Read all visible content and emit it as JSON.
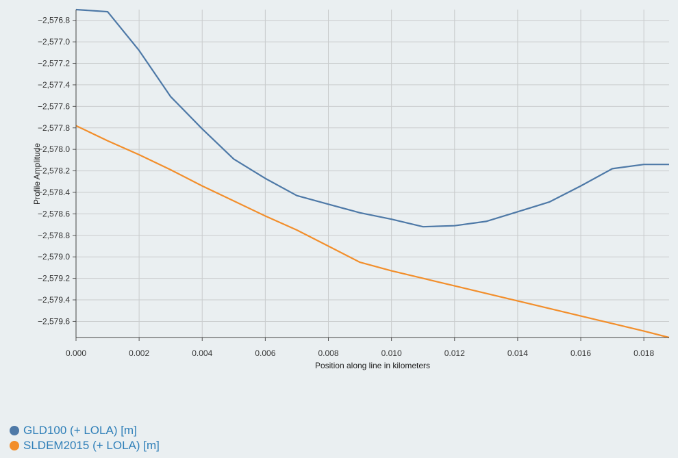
{
  "chart_data": {
    "type": "line",
    "xlabel": "Position along line in kilometers",
    "ylabel": "Profile Amplitude",
    "xlim": [
      0,
      0.0188
    ],
    "ylim": [
      -2579.75,
      -2576.7
    ],
    "xticks": [
      0.0,
      0.002,
      0.004,
      0.006,
      0.008,
      0.01,
      0.012,
      0.014,
      0.016,
      0.018
    ],
    "xtick_labels": [
      "0.000",
      "0.002",
      "0.004",
      "0.006",
      "0.008",
      "0.010",
      "0.012",
      "0.014",
      "0.016",
      "0.018"
    ],
    "yticks": [
      -2576.8,
      -2577.0,
      -2577.2,
      -2577.4,
      -2577.6,
      -2577.8,
      -2578.0,
      -2578.2,
      -2578.4,
      -2578.6,
      -2578.8,
      -2579.0,
      -2579.2,
      -2579.4,
      -2579.6
    ],
    "ytick_labels": [
      "−2,576.8",
      "−2,577.0",
      "−2,577.2",
      "−2,577.4",
      "−2,577.6",
      "−2,577.8",
      "−2,578.0",
      "−2,578.2",
      "−2,578.4",
      "−2,578.6",
      "−2,578.8",
      "−2,579.0",
      "−2,579.2",
      "−2,579.4",
      "−2,579.6"
    ],
    "grid": true,
    "legend_position": "bottom-left",
    "series": [
      {
        "name": "GLD100 (+ LOLA) [m]",
        "color": "#4e79a7",
        "x": [
          0.0,
          0.001,
          0.002,
          0.003,
          0.004,
          0.005,
          0.006,
          0.007,
          0.008,
          0.009,
          0.01,
          0.011,
          0.012,
          0.013,
          0.014,
          0.015,
          0.016,
          0.017,
          0.018,
          0.0188
        ],
        "y": [
          -2576.7,
          -2576.72,
          -2577.08,
          -2577.51,
          -2577.81,
          -2578.09,
          -2578.27,
          -2578.43,
          -2578.51,
          -2578.59,
          -2578.65,
          -2578.72,
          -2578.71,
          -2578.67,
          -2578.58,
          -2578.49,
          -2578.34,
          -2578.18,
          -2578.14,
          -2578.14
        ]
      },
      {
        "name": "SLDEM2015 (+ LOLA) [m]",
        "color": "#f28e2b",
        "x": [
          0.0,
          0.001,
          0.002,
          0.003,
          0.004,
          0.005,
          0.006,
          0.007,
          0.008,
          0.009,
          0.01,
          0.011,
          0.012,
          0.013,
          0.014,
          0.015,
          0.016,
          0.017,
          0.018,
          0.0188
        ],
        "y": [
          -2577.78,
          -2577.92,
          -2578.05,
          -2578.19,
          -2578.34,
          -2578.48,
          -2578.62,
          -2578.75,
          -2578.9,
          -2579.05,
          -2579.13,
          -2579.2,
          -2579.27,
          -2579.34,
          -2579.41,
          -2579.48,
          -2579.55,
          -2579.62,
          -2579.69,
          -2579.75
        ]
      }
    ]
  }
}
